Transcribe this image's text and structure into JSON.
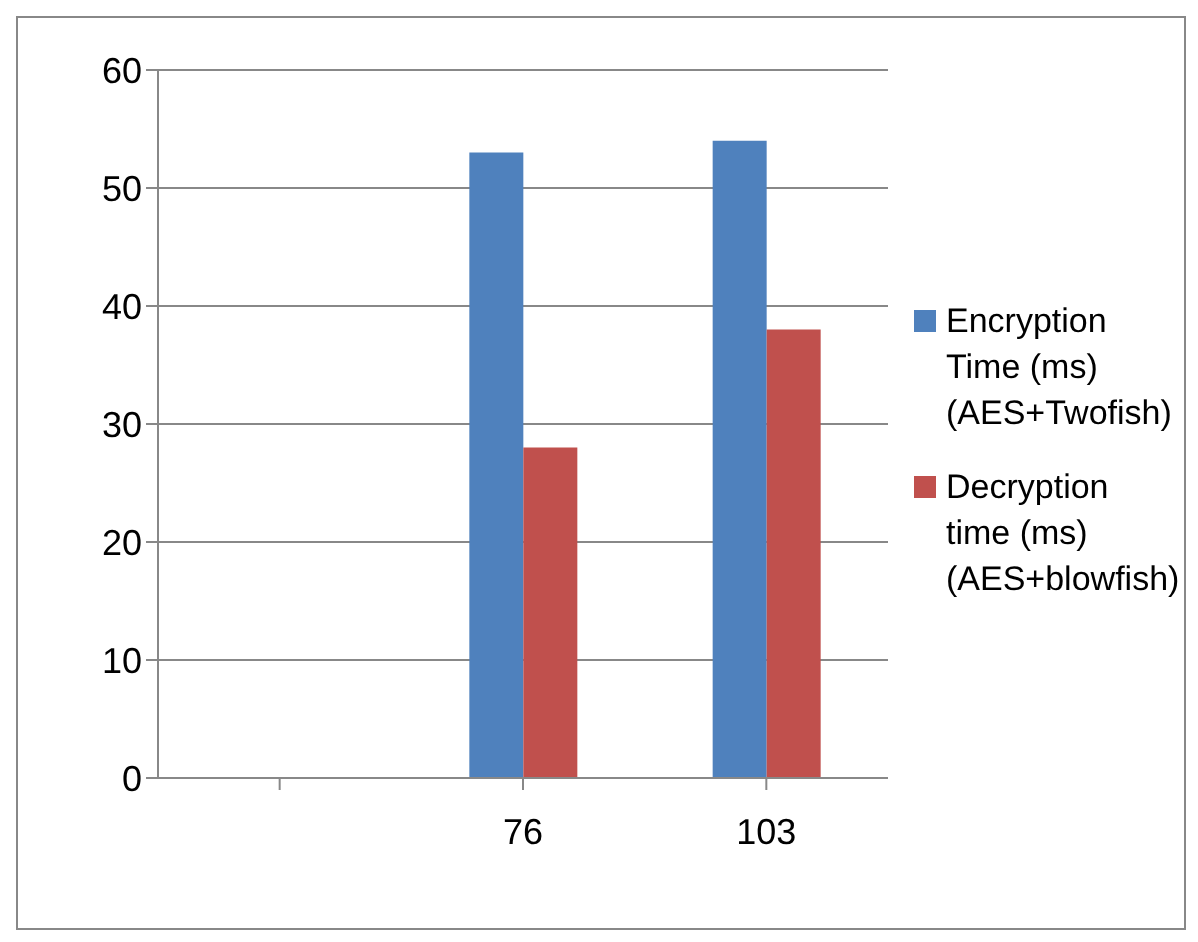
{
  "chart_data": {
    "type": "bar",
    "categories": [
      null,
      "76",
      "103"
    ],
    "series": [
      {
        "name": "Encryption Time (ms) (AES+Twofish)",
        "color": "#4f81bd",
        "values": [
          null,
          53,
          54
        ]
      },
      {
        "name": "Decryption time (ms) (AES+blowfish)",
        "color": "#c0504d",
        "values": [
          null,
          28,
          38
        ]
      }
    ],
    "ylim": [
      0,
      60
    ],
    "yticks": [
      0,
      10,
      20,
      30,
      40,
      50,
      60
    ],
    "grid": "y",
    "legend": "right"
  }
}
